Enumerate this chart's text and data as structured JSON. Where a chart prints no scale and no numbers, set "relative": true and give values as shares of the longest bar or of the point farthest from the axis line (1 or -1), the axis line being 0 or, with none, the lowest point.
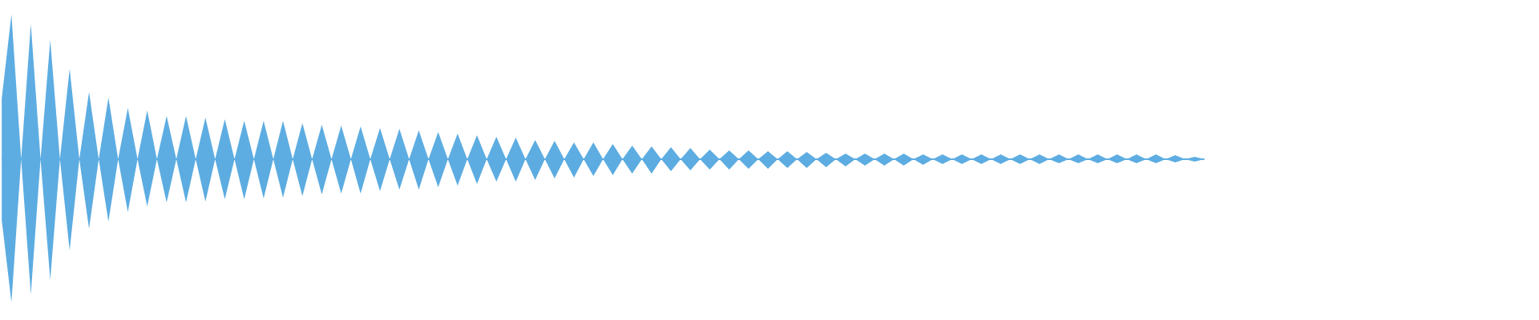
{
  "chart_data": {
    "type": "area",
    "relative": true,
    "ref_lines": [
      {
        "axis": "y",
        "value": 0,
        "color": "#5dade2"
      }
    ],
    "categories": [
      null,
      null,
      null,
      null,
      null,
      null,
      null,
      null,
      null,
      null,
      null,
      null,
      null,
      null,
      null,
      null,
      null,
      null,
      null,
      null,
      null,
      null,
      null,
      null,
      null,
      null,
      null,
      null,
      null,
      null,
      null,
      null,
      null,
      null,
      null,
      null,
      null,
      null,
      null,
      null,
      null,
      null,
      null,
      null,
      null,
      null,
      null,
      null,
      null,
      null,
      null,
      null,
      null,
      null,
      null,
      null,
      null,
      null,
      null,
      null,
      null,
      null,
      null,
      null,
      null,
      null,
      null,
      null,
      null,
      null,
      null,
      null,
      null,
      null,
      null,
      null,
      null,
      null,
      null,
      null,
      null,
      null,
      null,
      null,
      null,
      null,
      null,
      null,
      null,
      null,
      null,
      null,
      null,
      null,
      null,
      null,
      null,
      null,
      null,
      null,
      null,
      null,
      null,
      null,
      null,
      null,
      null,
      null,
      null,
      null,
      null,
      null,
      null,
      null,
      null,
      null,
      null,
      null,
      null,
      null,
      null,
      null,
      null,
      null,
      null
    ],
    "series": [
      {
        "color": "#5dade2",
        "values": [
          0.42,
          1.0,
          0,
          0.934,
          0,
          0.823,
          0,
          0.624,
          0,
          0.464,
          0,
          0.425,
          0,
          0.354,
          0,
          0.337,
          0,
          0.298,
          0,
          0.298,
          0,
          0.287,
          0,
          0.276,
          0,
          0.265,
          0,
          0.265,
          0,
          0.265,
          0,
          0.249,
          0,
          0.238,
          0,
          0.232,
          0,
          0.227,
          0,
          0.215,
          0,
          0.21,
          0,
          0.199,
          0,
          0.188,
          0,
          0.177,
          0,
          0.166,
          0,
          0.155,
          0,
          0.149,
          0,
          0.133,
          0,
          0.127,
          0,
          0.116,
          0,
          0.116,
          0,
          0.105,
          0,
          0.094,
          0,
          0.088,
          0,
          0.083,
          0,
          0.077,
          0,
          0.066,
          0,
          0.061,
          0,
          0.061,
          0,
          0.055,
          0,
          0.055,
          0,
          0.05,
          0,
          0.044,
          0,
          0.039,
          0,
          0.039,
          0,
          0.039,
          0,
          0.039,
          0,
          0.033,
          0,
          0.033,
          0,
          0.033,
          0,
          0.033,
          0,
          0.033,
          0,
          0.033,
          0,
          0.033,
          0,
          0.033,
          0,
          0.033,
          0,
          0.033,
          0,
          0.033,
          0,
          0.033,
          0,
          0.033,
          0,
          0.028,
          0,
          0.017,
          0
        ]
      },
      {
        "color": "#5cace1",
        "values": [
          -0.42,
          -0.989,
          0,
          -0.934,
          0,
          -0.834,
          0,
          -0.63,
          0,
          -0.481,
          0,
          -0.431,
          0,
          -0.365,
          0,
          -0.326,
          0,
          -0.298,
          0,
          -0.298,
          0,
          -0.293,
          0,
          -0.276,
          0,
          -0.276,
          0,
          -0.271,
          0,
          -0.265,
          0,
          -0.254,
          0,
          -0.243,
          0,
          -0.238,
          0,
          -0.238,
          0,
          -0.221,
          0,
          -0.21,
          0,
          -0.21,
          0,
          -0.193,
          0,
          -0.182,
          0,
          -0.171,
          0,
          -0.155,
          0,
          -0.155,
          0,
          -0.144,
          0,
          -0.133,
          0,
          -0.127,
          0,
          -0.116,
          0,
          -0.11,
          0,
          -0.099,
          0,
          -0.099,
          0,
          -0.083,
          0,
          -0.077,
          0,
          -0.072,
          0,
          -0.072,
          0,
          -0.066,
          0,
          -0.066,
          0,
          -0.061,
          0,
          -0.061,
          0,
          -0.055,
          0,
          -0.05,
          0,
          -0.044,
          0,
          -0.044,
          0,
          -0.044,
          0,
          -0.039,
          0,
          -0.033,
          0,
          -0.033,
          0,
          -0.033,
          0,
          -0.033,
          0,
          -0.033,
          0,
          -0.033,
          0,
          -0.028,
          0,
          -0.028,
          0,
          -0.028,
          0,
          -0.028,
          0,
          -0.028,
          0,
          -0.028,
          0,
          -0.022,
          0,
          -0.017,
          0
        ]
      }
    ]
  }
}
